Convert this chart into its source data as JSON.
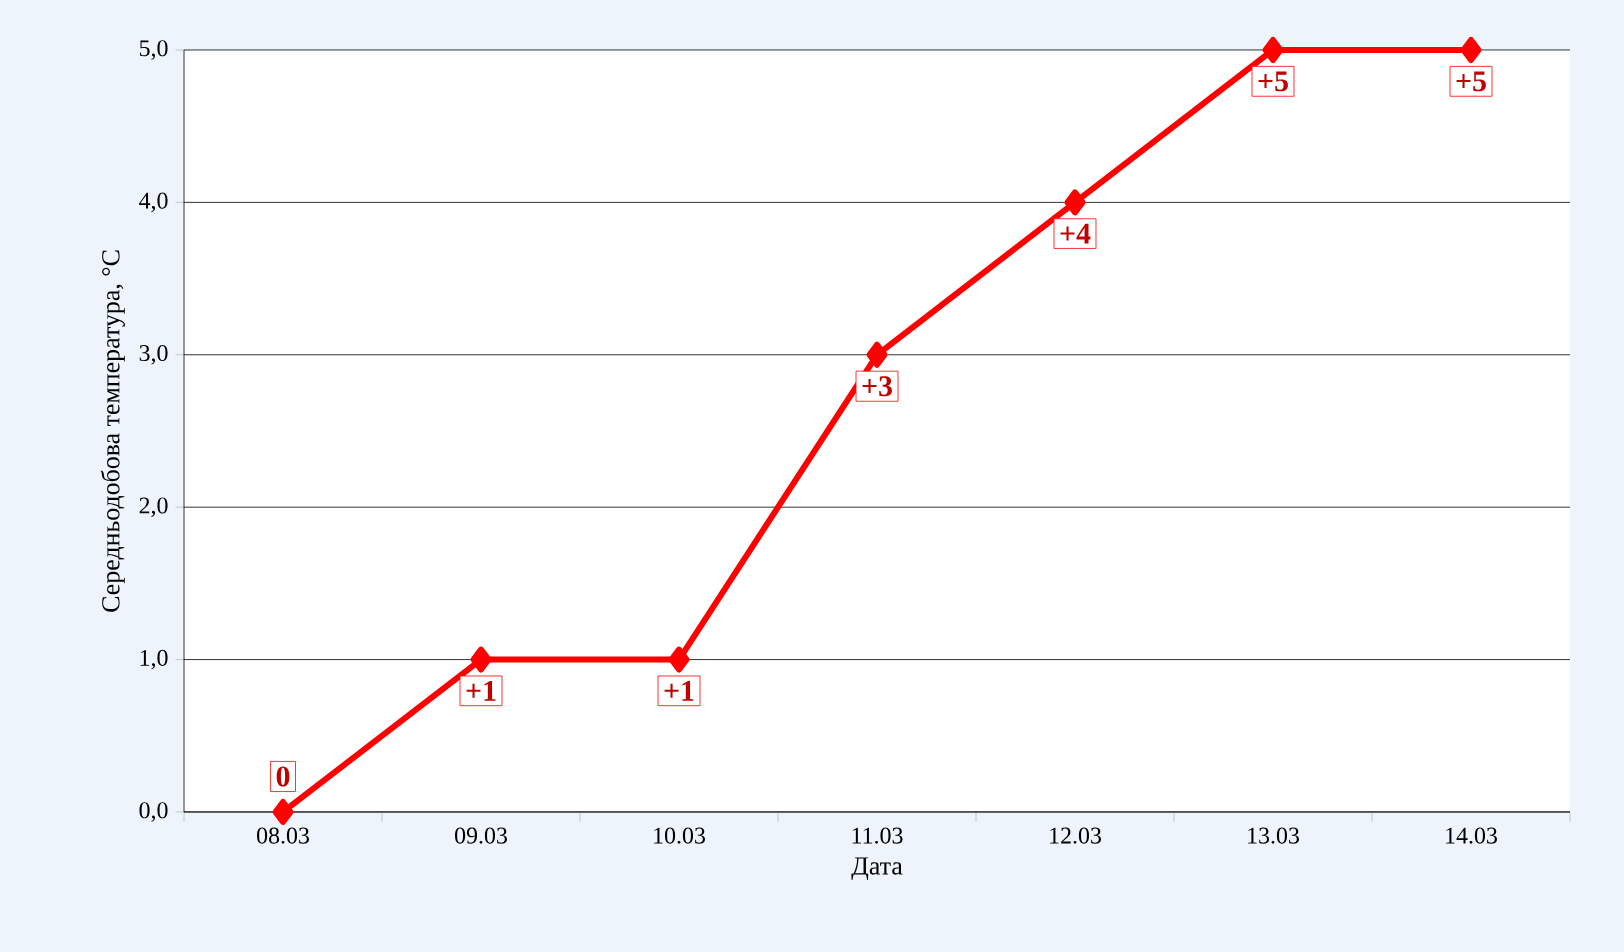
{
  "chart_data": {
    "type": "line",
    "xlabel": "Дата",
    "ylabel": "Середньодобова температура,  °С",
    "categories": [
      "08.03",
      "09.03",
      "10.03",
      "11.03",
      "12.03",
      "13.03",
      "14.03"
    ],
    "values": [
      0,
      1,
      1,
      3,
      4,
      5,
      5
    ],
    "value_labels": [
      "0",
      "+1",
      "+1",
      "+3",
      "+4",
      "+5",
      "+5"
    ],
    "color": "#ff0000",
    "marker": "diamond",
    "line_style": "solid",
    "grid": "y",
    "ylim": [
      0,
      5
    ],
    "yticks": [
      {
        "value": 0,
        "label": "0,0"
      },
      {
        "value": 1,
        "label": "1,0"
      },
      {
        "value": 2,
        "label": "2,0"
      },
      {
        "value": 3,
        "label": "3,0"
      },
      {
        "value": 4,
        "label": "4,0"
      },
      {
        "value": 5,
        "label": "5,0"
      }
    ]
  }
}
